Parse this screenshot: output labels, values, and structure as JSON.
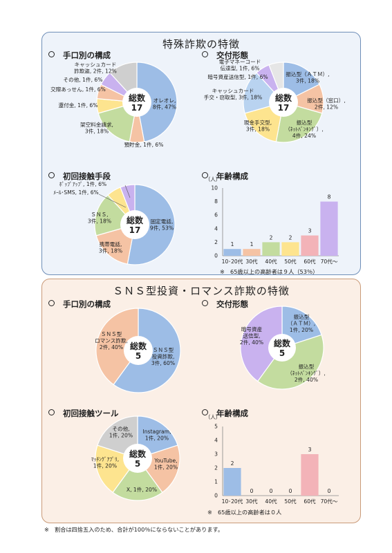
{
  "footnote": "※　割合は四捨五入のため、合計が100％にならないことがあります。",
  "panel1": {
    "title": "特殊詐欺の特徴",
    "sections": [
      "手口別の構成",
      "交付形態",
      "初回接触手段",
      "年齢構成"
    ],
    "age_note": "※　65歳以上の高齢者は９人（53％）"
  },
  "panel2": {
    "title": "ＳＮＳ型投資・ロマンス詐欺の特徴",
    "sections": [
      "手口別の構成",
      "交付形態",
      "初回接触ツール",
      "年齢構成"
    ],
    "age_note": "※　65歳以上の高齢者は０人"
  },
  "colors": {
    "blue": "#9dbde6",
    "orange": "#f5c3a4",
    "gray": "#cfcfcf",
    "yellow": "#fde48f",
    "green": "#c3dc9f",
    "purple": "#c9b2ef",
    "lightblue": "#b9d3f0",
    "pink": "#f3b3b8"
  },
  "chart_data": [
    {
      "type": "pie",
      "id": "p1_method",
      "center": [
        "総数",
        "17"
      ],
      "slices": [
        {
          "label": [
            "オレオレ,",
            "8件, 47%"
          ],
          "value": 8,
          "color": "#9dbde6"
        },
        {
          "label": [
            "預貯金, 1件, 6%"
          ],
          "value": 1,
          "color": "#f5c3a4"
        },
        {
          "label": [
            "架空料金請求,",
            "3件, 18%"
          ],
          "value": 3,
          "color": "#c3dc9f"
        },
        {
          "label": [
            "還付金, 1件, 6%"
          ],
          "value": 1,
          "color": "#fde48f"
        },
        {
          "label": [
            "交際あっせん, 1件, 6%"
          ],
          "value": 1,
          "color": "#f5c3a4"
        },
        {
          "label": [
            "その他, 1件, 6%"
          ],
          "value": 1,
          "color": "#c9b2ef"
        },
        {
          "label": [
            "キャッシュカード",
            "詐欺盗, 2件, 12%"
          ],
          "value": 2,
          "color": "#cfcfcf"
        }
      ]
    },
    {
      "type": "pie",
      "id": "p1_delivery",
      "center": [
        "総数",
        "17"
      ],
      "slices": [
        {
          "label": [
            "振込型（ＡＴＭ）,",
            "3件, 18%"
          ],
          "value": 3,
          "color": "#9dbde6"
        },
        {
          "label": [
            "振込型（窓口）,",
            "2件, 12%"
          ],
          "value": 2,
          "color": "#f5c3a4"
        },
        {
          "label": [
            "振込型",
            "（ﾈｯﾄﾊﾞﾝｷﾝｸﾞ）,",
            "4件, 24%"
          ],
          "value": 4,
          "color": "#c3dc9f"
        },
        {
          "label": [
            "現金手交型,",
            "3件, 18%"
          ],
          "value": 3,
          "color": "#fde48f"
        },
        {
          "label": [
            "キャッシュカード",
            "手交・窃取型, 3件, 18%"
          ],
          "value": 3,
          "color": "#b9d3f0"
        },
        {
          "label": [
            "暗号資産送信型, 1件, 6%"
          ],
          "value": 1,
          "color": "#c9b2ef"
        },
        {
          "label": [
            "電子マネーコード",
            "伝達型, 1件, 6%"
          ],
          "value": 1,
          "color": "#e6e6e6"
        }
      ]
    },
    {
      "type": "pie",
      "id": "p1_contact",
      "center": [
        "総数",
        "17"
      ],
      "slices": [
        {
          "label": [
            "固定電話,",
            "9件, 53%"
          ],
          "value": 9,
          "color": "#9dbde6"
        },
        {
          "label": [
            "携帯電話,",
            "3件, 18%"
          ],
          "value": 3,
          "color": "#f5c3a4"
        },
        {
          "label": [
            "ＳＮＳ,",
            "3件, 18%"
          ],
          "value": 3,
          "color": "#c3dc9f"
        },
        {
          "label": [
            "ﾒｰﾙ･SMS, 1件, 6%"
          ],
          "value": 1,
          "color": "#fde48f"
        },
        {
          "label": [
            "ﾎﾟｯﾌﾟｱｯﾌﾟ, 1件, 6%"
          ],
          "value": 1,
          "color": "#c9b2ef"
        }
      ]
    },
    {
      "type": "bar",
      "id": "p1_age",
      "ylabel": "（人）",
      "ylim": [
        0,
        10
      ],
      "yticks": [
        "0",
        "2",
        "4",
        "6",
        "8",
        "10"
      ],
      "categories": [
        "10･20代",
        "30代",
        "40代",
        "50代",
        "60代",
        "70代～"
      ],
      "values": [
        1,
        1,
        2,
        2,
        3,
        8
      ],
      "colors": [
        "#9dbde6",
        "#f5c3a4",
        "#c3dc9f",
        "#fde48f",
        "#f3b3b8",
        "#c9b2ef"
      ]
    },
    {
      "type": "pie",
      "id": "p2_method",
      "center": [
        "総数",
        "5"
      ],
      "slices": [
        {
          "label": [
            "ＳＮＳ型",
            "投資詐欺,",
            "3件, 60%"
          ],
          "value": 3,
          "color": "#9dbde6"
        },
        {
          "label": [
            "ＳＮＳ型",
            "ロマンス詐欺,",
            "2件, 40%"
          ],
          "value": 2,
          "color": "#f5c3a4"
        }
      ]
    },
    {
      "type": "pie",
      "id": "p2_delivery",
      "center": [
        "総数",
        "5"
      ],
      "slices": [
        {
          "label": [
            "振込型",
            "（ＡＴＭ）,",
            "1件, 20%"
          ],
          "value": 1,
          "color": "#9dbde6"
        },
        {
          "label": [
            "振込型",
            "（ﾈｯﾄﾊﾞﾝｷﾝｸﾞ）,",
            "2件, 40%"
          ],
          "value": 2,
          "color": "#c3dc9f"
        },
        {
          "label": [
            "暗号資産",
            "送信型,",
            "2件, 40%"
          ],
          "value": 2,
          "color": "#c9b2ef"
        }
      ]
    },
    {
      "type": "pie",
      "id": "p2_contact",
      "center": [
        "総数",
        "5"
      ],
      "slices": [
        {
          "label": [
            "Instagram,",
            "1件, 20%"
          ],
          "value": 1,
          "color": "#9dbde6"
        },
        {
          "label": [
            "YouTube,",
            "1件, 20%"
          ],
          "value": 1,
          "color": "#f5c3a4"
        },
        {
          "label": [
            "X, 1件, 20%"
          ],
          "value": 1,
          "color": "#c3dc9f"
        },
        {
          "label": [
            "ﾏｯﾁﾝｸﾞｱﾌﾟﾘ,",
            "1件, 20%"
          ],
          "value": 1,
          "color": "#fde48f"
        },
        {
          "label": [
            "その他,",
            "1件, 20%"
          ],
          "value": 1,
          "color": "#cfcfcf"
        }
      ]
    },
    {
      "type": "bar",
      "id": "p2_age",
      "ylabel": "（人）",
      "ylim": [
        0,
        5
      ],
      "yticks": [
        "0",
        "1",
        "2",
        "3",
        "4",
        "5"
      ],
      "categories": [
        "10･20代",
        "30代",
        "40代",
        "50代",
        "60代",
        "70代～"
      ],
      "values": [
        2,
        0,
        0,
        0,
        3,
        0
      ],
      "colors": [
        "#9dbde6",
        "#f5c3a4",
        "#c3dc9f",
        "#fde48f",
        "#f3b3b8",
        "#c9b2ef"
      ]
    }
  ]
}
